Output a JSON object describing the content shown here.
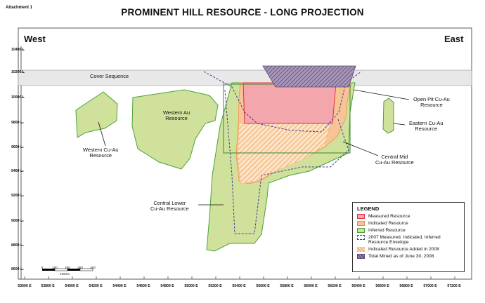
{
  "attachment": "Attachment 1",
  "title": "PROMINENT HILL RESOURCE - LONG PROJECTION",
  "directions": {
    "west": "West",
    "east": "East"
  },
  "y_axis": [
    "10400 L",
    "10200 L",
    "10000 L",
    "9800 L",
    "9600 L",
    "9400 L",
    "9200 L",
    "9000 L",
    "8800 L",
    "8600 L"
  ],
  "x_axis": [
    "53600 E",
    "53800 E",
    "54000 E",
    "54200 E",
    "54400 E",
    "54600 E",
    "54800 E",
    "55000 E",
    "55200 E",
    "55400 E",
    "55600 E",
    "55800 E",
    "56000 E",
    "56200 E",
    "56400 E",
    "56600 E",
    "56800 E",
    "57000 E",
    "57200 E"
  ],
  "labels": {
    "cover_sequence": "Cover Sequence",
    "western_au": [
      "Western Au",
      "Resource"
    ],
    "western_cu_au": [
      "Western Cu-Au",
      "Resource"
    ],
    "central_lower": [
      "Central Lower",
      "Cu-Au Resource"
    ],
    "central_mid": [
      "Central Mid",
      "Cu-Au Resource"
    ],
    "open_pit": [
      "Open Pit Cu-Au",
      "Resource"
    ],
    "eastern": [
      "Eastern Cu-Au",
      "Resource"
    ]
  },
  "legend": {
    "title": "LEGEND",
    "items": [
      {
        "label": "Measured Resource",
        "color": "#f4a6ad"
      },
      {
        "label": "Indicated Resource",
        "color": "#f7c496"
      },
      {
        "label": "Inferred Resource",
        "color": "#cfe19a"
      },
      {
        "label": "2007 Measured, Indicated, Inferred Resource Envelope",
        "color": "#4a3a9a"
      },
      {
        "label": "Indicated Resource Added in 2008",
        "color": "#f6c88e"
      },
      {
        "label": "Total Mined as of June 30, 2008",
        "color": "#7b6a96"
      }
    ]
  },
  "scale": {
    "ticks": [
      "0",
      "100",
      "200",
      "300",
      "400"
    ],
    "unit": "metres"
  }
}
